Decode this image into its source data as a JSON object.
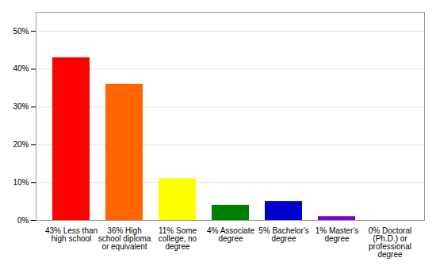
{
  "chart_data": {
    "type": "bar",
    "categories": [
      "43% Less than\nhigh school",
      "36% High\nschool diploma\nor equivalent",
      "11% Some\ncollege, no\ndegree",
      "4% Associate\ndegree",
      "5% Bachelor's\ndegree",
      "1% Master's\ndegree",
      "0% Doctoral\n(Ph.D.) or\nprofessional\ndegree"
    ],
    "values": [
      43,
      36,
      11,
      4,
      5,
      1,
      0
    ],
    "colors": [
      "#ff0000",
      "#ff6600",
      "#ffff00",
      "#008000",
      "#0000cc",
      "#7700cc",
      "#ff00ff"
    ],
    "ylim": [
      0,
      55
    ],
    "yticks": [
      {
        "value": 0,
        "label": "0%"
      },
      {
        "value": 10,
        "label": "10%"
      },
      {
        "value": 20,
        "label": "20%"
      },
      {
        "value": 30,
        "label": "30%"
      },
      {
        "value": 40,
        "label": "40%"
      },
      {
        "value": 50,
        "label": "50%"
      }
    ],
    "grid": true
  }
}
